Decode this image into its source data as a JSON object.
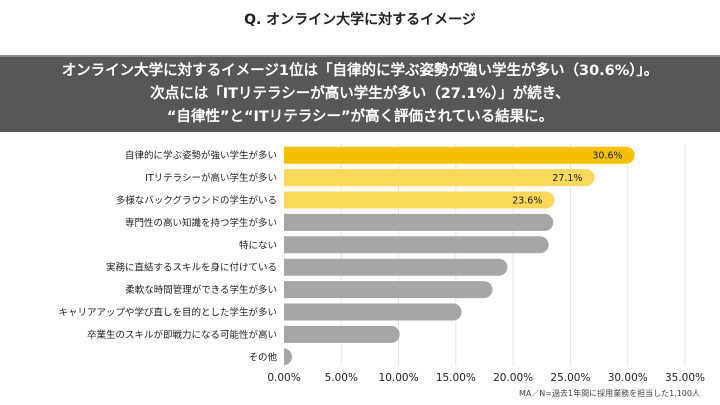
{
  "header": {
    "question": "Q. オンライン大学に対するイメージ"
  },
  "banner": {
    "line1": "オンライン大学に対するイメージ1位は「自律的に学ぶ姿勢が強い学生が多い（30.6%）」。",
    "line2": "次点には「ITリテラシーが高い学生が多い（27.1%）」が続き、",
    "line3": "“自律性”と“ITリテラシー”が高く評価されている結果に。"
  },
  "footnote": "MA／N=過去1年間に採用業務を担当した1,100人",
  "chart_data": {
    "type": "bar",
    "orientation": "horizontal",
    "categories": [
      "自律的に学ぶ姿勢が強い学生が多い",
      "ITリテラシーが高い学生が多い",
      "多様なバックグラウンドの学生がいる",
      "専門性の高い知識を持つ学生が多い",
      "特にない",
      "実務に直結するスキルを身に付けている",
      "柔軟な時間管理ができる学生が多い",
      "キャリアアップや学び直しを目的とした学生が多い",
      "卒業生のスキルが即戦力になる可能性が高い",
      "その他"
    ],
    "values": [
      30.6,
      27.1,
      23.6,
      23.5,
      23.1,
      19.5,
      18.2,
      15.5,
      10.1,
      0.6
    ],
    "data_labels": [
      "30.6%",
      "27.1%",
      "23.6%",
      "",
      "",
      "",
      "",
      "",
      "",
      ""
    ],
    "colors": [
      "#f5c000",
      "#fbd85a",
      "#fbd85a",
      "#a6a6a6",
      "#a6a6a6",
      "#a6a6a6",
      "#a6a6a6",
      "#a6a6a6",
      "#a6a6a6",
      "#a6a6a6"
    ],
    "xlim": [
      0,
      35
    ],
    "xticks": [
      "0.00%",
      "5.00%",
      "10.00%",
      "15.00%",
      "20.00%",
      "25.00%",
      "30.00%",
      "35.00%"
    ],
    "grid": true,
    "legend": "none"
  }
}
